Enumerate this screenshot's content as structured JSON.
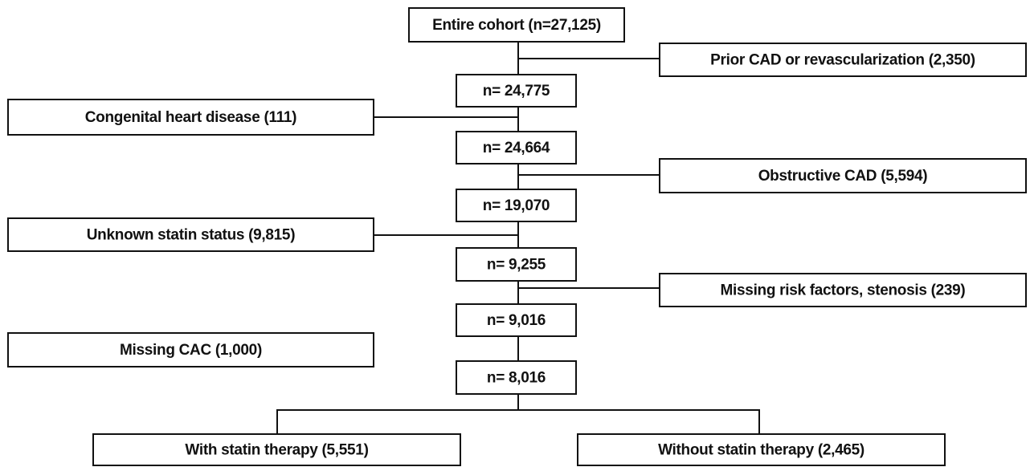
{
  "nodes": [
    {
      "label": "Entire cohort (n=27,125)"
    },
    {
      "label": "Prior CAD or revascularization (2,350)"
    },
    {
      "label": "n= 24,775"
    },
    {
      "label": "Congenital heart disease (111)"
    },
    {
      "label": "n= 24,664"
    },
    {
      "label": "Obstructive CAD (5,594)"
    },
    {
      "label": "n= 19,070"
    },
    {
      "label": "Unknown statin status (9,815)"
    },
    {
      "label": "n= 9,255"
    },
    {
      "label": "Missing risk factors, stenosis (239)"
    },
    {
      "label": "n= 9,016"
    },
    {
      "label": "Missing CAC (1,000)"
    },
    {
      "label": "n= 8,016"
    },
    {
      "label": "With statin therapy (5,551)"
    },
    {
      "label": "Without statin therapy (2,465)"
    }
  ]
}
